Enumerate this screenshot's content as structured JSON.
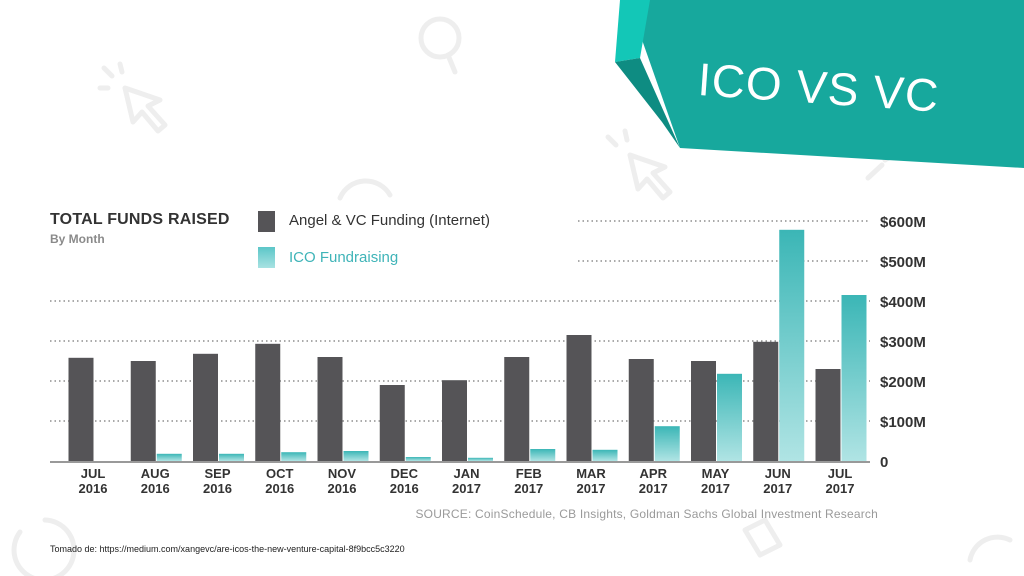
{
  "banner": {
    "title": "ICO VS VC",
    "color": "#17a89d"
  },
  "chart_data": {
    "type": "bar",
    "title": "TOTAL FUNDS RAISED",
    "subtitle": "By Month",
    "categories": [
      [
        "JUL",
        "2016"
      ],
      [
        "AUG",
        "2016"
      ],
      [
        "SEP",
        "2016"
      ],
      [
        "OCT",
        "2016"
      ],
      [
        "NOV",
        "2016"
      ],
      [
        "DEC",
        "2016"
      ],
      [
        "JAN",
        "2017"
      ],
      [
        "FEB",
        "2017"
      ],
      [
        "MAR",
        "2017"
      ],
      [
        "APR",
        "2017"
      ],
      [
        "MAY",
        "2017"
      ],
      [
        "JUN",
        "2017"
      ],
      [
        "JUL",
        "2017"
      ]
    ],
    "series": [
      {
        "name": "Angel & VC Funding (Internet)",
        "color": "#555457",
        "values": [
          258,
          250,
          268,
          293,
          260,
          190,
          202,
          260,
          315,
          255,
          250,
          298,
          230
        ]
      },
      {
        "name": "ICO Fundraising",
        "color": "#6ccfd0",
        "values": [
          0,
          18,
          18,
          22,
          25,
          10,
          8,
          30,
          28,
          87,
          218,
          578,
          415
        ]
      }
    ],
    "yticks": [
      "0",
      "$100M",
      "$200M",
      "$300M",
      "$400M",
      "$500M",
      "$600M"
    ],
    "ylim": [
      0,
      600
    ],
    "grid": "dotted",
    "legend_position": "top-left",
    "source": "SOURCE: CoinSchedule, CB Insights, Goldman Sachs Global Investment Research"
  },
  "footnote": "Tomado de: https://medium.com/xangevc/are-icos-the-new-venture-capital-8f9bcc5c3220"
}
